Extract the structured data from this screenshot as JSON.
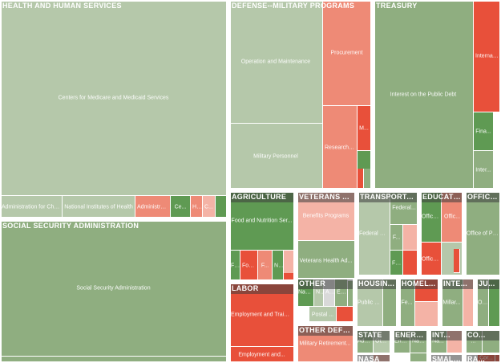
{
  "chart_data": {
    "type": "treemap",
    "colors": {
      "light_green": "#b5c8aa",
      "mid_green": "#8fae80",
      "dark_green": "#5f9a53",
      "light_red": "#f4b3a6",
      "mid_red": "#ee8a76",
      "dark_red": "#e8503a",
      "grey": "#d9d9d9"
    },
    "departments": [
      {
        "name": "HEALTH AND HUMAN SERVICES",
        "agencies": [
          {
            "name": "Centers for Medicare and Medicaid Services",
            "color": "light_green"
          },
          {
            "name": "Administration for Chil...",
            "color": "light_green"
          },
          {
            "name": "National Institutes of Health",
            "color": "light_green"
          },
          {
            "name": "Administrati...",
            "color": "mid_red"
          },
          {
            "name": "Ce...",
            "color": "dark_green"
          },
          {
            "name": "He...",
            "color": "mid_red"
          },
          {
            "name": "C...",
            "color": "light_red"
          }
        ]
      },
      {
        "name": "DEFENSE--MILITARY PROGRAMS",
        "agencies": [
          {
            "name": "Operation and Maintenance",
            "color": "light_green"
          },
          {
            "name": "Military Personnel",
            "color": "light_green"
          },
          {
            "name": "Procurement",
            "color": "mid_red"
          },
          {
            "name": "Research, ...",
            "color": "mid_red"
          },
          {
            "name": "M...",
            "color": "dark_red"
          }
        ]
      },
      {
        "name": "TREASURY",
        "agencies": [
          {
            "name": "Interest on the Public Debt",
            "color": "mid_green"
          },
          {
            "name": "Internal ...",
            "color": "dark_red"
          },
          {
            "name": "Fina...",
            "color": "dark_green"
          },
          {
            "name": "Inter...",
            "color": "mid_green"
          }
        ]
      },
      {
        "name": "SOCIAL SECURITY ADMINISTRATION",
        "agencies": [
          {
            "name": "Social Security Administration",
            "color": "mid_green"
          },
          {
            "name": "Social Security Administr...",
            "color": "mid_green"
          }
        ]
      },
      {
        "name": "AGRICULTURE",
        "agencies": [
          {
            "name": "Food and Nutrition Ser...",
            "color": "dark_green"
          },
          {
            "name": "Fa...",
            "color": "dark_green"
          },
          {
            "name": "Foo...",
            "color": "dark_red"
          },
          {
            "name": "F...",
            "color": "mid_red"
          },
          {
            "name": "N...",
            "color": "dark_green"
          }
        ]
      },
      {
        "name": "VETERANS AF...",
        "agencies": [
          {
            "name": "Benefits Programs",
            "color": "light_red"
          },
          {
            "name": "Veterans Health Ad...",
            "color": "mid_green"
          }
        ]
      },
      {
        "name": "TRANSPORTA...",
        "agencies": [
          {
            "name": "Federal H...",
            "color": "light_green"
          },
          {
            "name": "Federal...",
            "color": "mid_green"
          },
          {
            "name": "F...",
            "color": "mid_green"
          },
          {
            "name": "Fe...",
            "color": "dark_green"
          }
        ]
      },
      {
        "name": "EDUCATI...",
        "agencies": [
          {
            "name": "Office...",
            "color": "dark_green"
          },
          {
            "name": "Offic...",
            "color": "mid_red"
          },
          {
            "name": "Office...",
            "color": "dark_red"
          }
        ]
      },
      {
        "name": "OFFICE...",
        "agencies": [
          {
            "name": "Office of Pe...",
            "color": "mid_green"
          }
        ]
      },
      {
        "name": "LABOR",
        "agencies": [
          {
            "name": "Employment and Traini...",
            "color": "dark_red"
          },
          {
            "name": "Employment and...",
            "color": "dark_red"
          }
        ]
      },
      {
        "name": "OTHER",
        "agencies": [
          {
            "name": "Nationa...",
            "color": "dark_green"
          },
          {
            "name": "All...",
            "color": "grey"
          },
          {
            "name": "En...",
            "color": "mid_green"
          },
          {
            "name": "Nati...",
            "color": "light_green"
          },
          {
            "name": "Postal ...",
            "color": "light_green"
          }
        ]
      },
      {
        "name": "OTHER DEFE...",
        "agencies": [
          {
            "name": "Military Retirement...",
            "color": "mid_red"
          }
        ]
      },
      {
        "name": "HOUSIN...",
        "agencies": [
          {
            "name": "Public a...",
            "color": "light_green"
          }
        ]
      },
      {
        "name": "HOMEL...",
        "agencies": [
          {
            "name": "Fe...",
            "color": "mid_green"
          }
        ]
      },
      {
        "name": "INTE...",
        "agencies": [
          {
            "name": "Millar...",
            "color": "mid_green"
          }
        ]
      },
      {
        "name": "JU...",
        "agencies": [
          {
            "name": "Offi...",
            "color": "mid_green"
          }
        ]
      },
      {
        "name": "STATE",
        "agencies": [
          {
            "name": "Adm...",
            "color": "mid_green"
          },
          {
            "name": "Other",
            "color": "light_green"
          }
        ]
      },
      {
        "name": "ENERGY",
        "agencies": [
          {
            "name": "Ene...",
            "color": "mid_green"
          },
          {
            "name": "Nati...",
            "color": "mid_green"
          }
        ]
      },
      {
        "name": "INT...",
        "agencies": [
          {
            "name": "Na...",
            "color": "mid_green"
          }
        ]
      },
      {
        "name": "CO...",
        "agencies": [
          {
            "name": "...",
            "color": "mid_green"
          }
        ]
      },
      {
        "name": "NASA",
        "agencies": []
      },
      {
        "name": "SMALL...",
        "agencies": [
          {
            "name": "Cor...",
            "color": "dark_red"
          }
        ]
      },
      {
        "name": "RA...",
        "agencies": []
      }
    ]
  }
}
